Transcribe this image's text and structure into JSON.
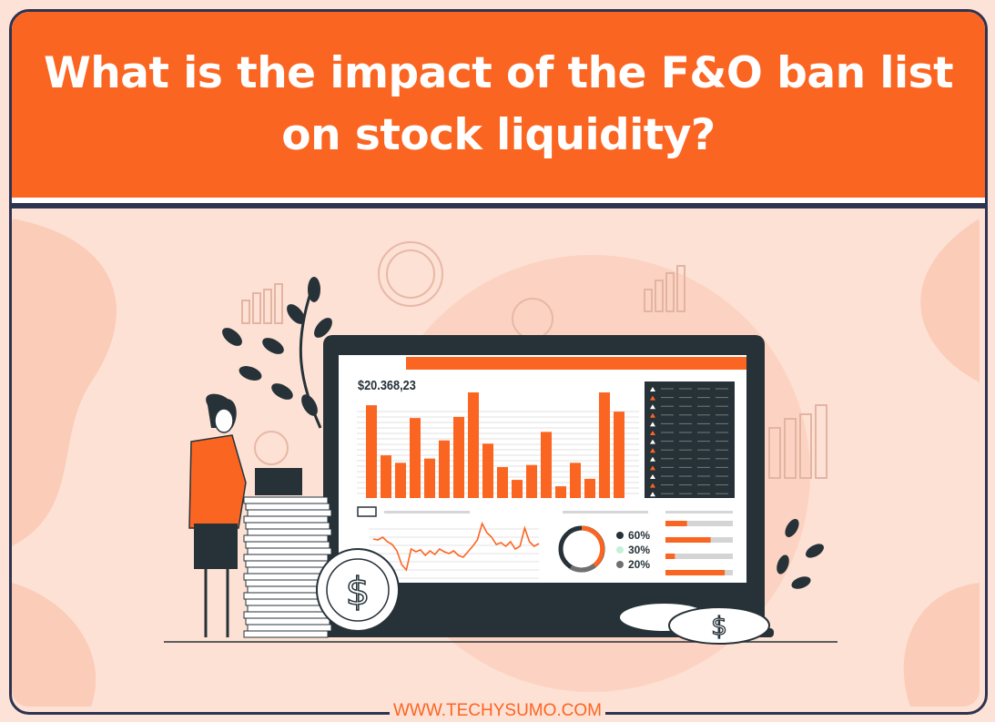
{
  "header": {
    "title": "What is the impact of the F&O ban list on stock liquidity?"
  },
  "footer": {
    "url": "WWW.TECHYSUMO.COM"
  },
  "dashboard": {
    "price": "$20.368,23",
    "bar_levels": [
      87,
      40,
      33,
      75,
      37,
      54,
      76,
      99,
      51,
      29,
      17,
      31,
      62,
      11,
      33,
      18,
      99,
      81
    ],
    "donut_legend": [
      {
        "label": "60%",
        "color": "#263238"
      },
      {
        "label": "30%",
        "color": "#c8f0d8"
      },
      {
        "label": "20%",
        "color": "#707070"
      }
    ],
    "progress_bars": [
      0.32,
      0.67,
      0.14,
      0.88
    ]
  },
  "colors": {
    "accent": "#fb6522",
    "navy": "#2e3350",
    "background": "#fde1d5",
    "screen": "#263238"
  }
}
